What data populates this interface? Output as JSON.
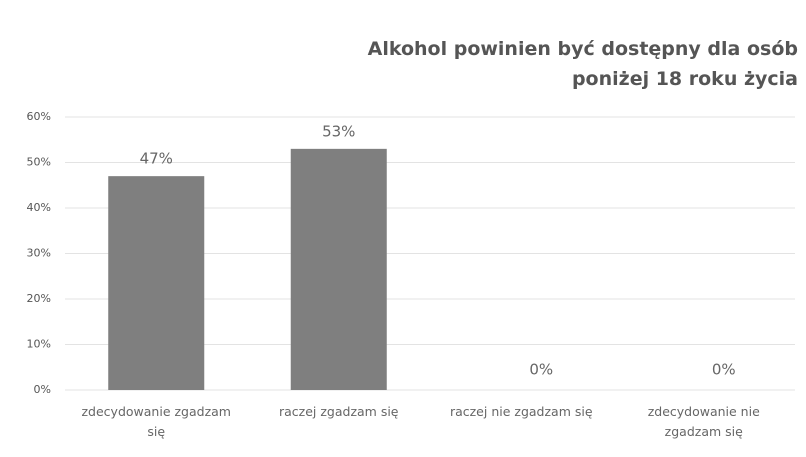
{
  "chart_data": {
    "type": "bar",
    "title": "Alkohol powinien być dostępny dla osób poniżej 18 roku życia",
    "categories": [
      "zdecydowanie zgadzam się",
      "raczej zgadzam się",
      "raczej nie zgadzam się",
      "zdecydowanie nie zgadzam się"
    ],
    "values": [
      47,
      53,
      0,
      0
    ],
    "value_labels": [
      "47%",
      "53%",
      "0%",
      "0%"
    ],
    "color": "#7f7f7f",
    "ylim": [
      0,
      60
    ],
    "yticks": [
      {
        "value": 0,
        "label": "0%"
      },
      {
        "value": 10,
        "label": "10%"
      },
      {
        "value": 20,
        "label": "20%"
      },
      {
        "value": 30,
        "label": "30%"
      },
      {
        "value": 40,
        "label": "40%"
      },
      {
        "value": 50,
        "label": "50%"
      },
      {
        "value": 60,
        "label": "60%"
      }
    ],
    "grid": true
  }
}
